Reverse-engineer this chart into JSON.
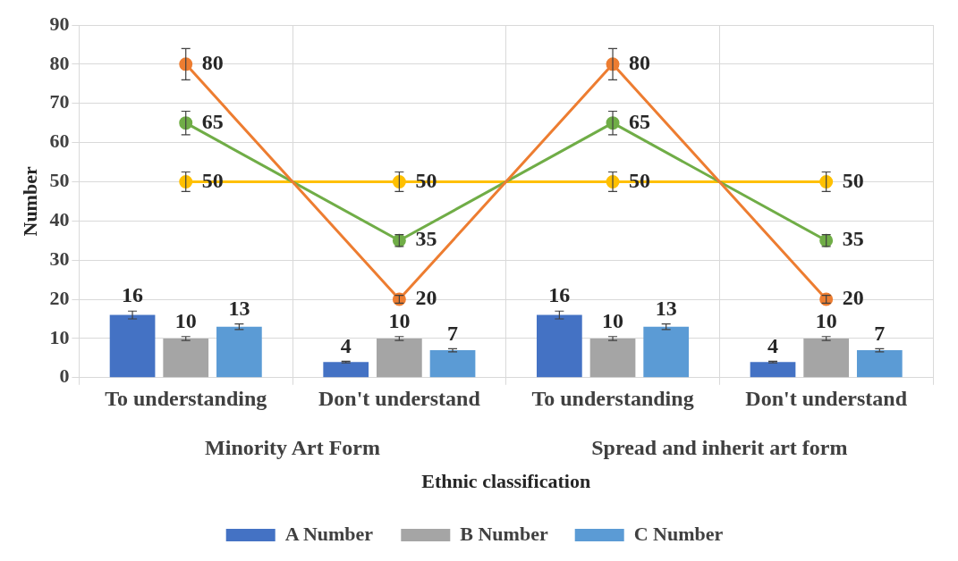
{
  "chart_data": {
    "type": "bar",
    "xlabel": "Ethnic classification",
    "ylabel": "Number",
    "categories": [
      "To understanding",
      "Don't understand",
      "To understanding",
      "Don't understand"
    ],
    "series": [
      {
        "name": "A Number",
        "color": "#4472c4",
        "values": [
          16,
          4,
          16,
          4
        ],
        "errors": [
          1,
          0.2,
          1,
          0.2
        ]
      },
      {
        "name": "B Number",
        "color": "#a5a5a5",
        "values": [
          10,
          10,
          10,
          10
        ],
        "errors": [
          0.5,
          0.5,
          0.5,
          0.5
        ]
      },
      {
        "name": "C Number",
        "color": "#5b9bd5",
        "values": [
          13,
          7,
          13,
          7
        ],
        "errors": [
          0.7,
          0.4,
          0.7,
          0.4
        ]
      },
      {
        "type": "line",
        "color": "#ed7d31",
        "values": [
          80,
          20,
          80,
          20
        ],
        "errors": [
          4,
          1,
          4,
          1
        ]
      },
      {
        "type": "line",
        "color": "#70ad47",
        "values": [
          65,
          35,
          65,
          35
        ],
        "errors": [
          3,
          1.5,
          3,
          1.5
        ]
      },
      {
        "type": "line",
        "color": "#ffc000",
        "values": [
          50,
          50,
          50,
          50
        ],
        "errors": [
          2.5,
          2.5,
          2.5,
          2.5
        ]
      }
    ],
    "ylim": [
      0,
      90
    ],
    "yticks": [
      0,
      10,
      20,
      30,
      40,
      50,
      60,
      70,
      80,
      90
    ],
    "grid": true,
    "legend": "bottom",
    "marker": "circle",
    "data_labels": true,
    "annotations": [
      "Minority Art Form",
      "Spread and inherit art form"
    ]
  }
}
